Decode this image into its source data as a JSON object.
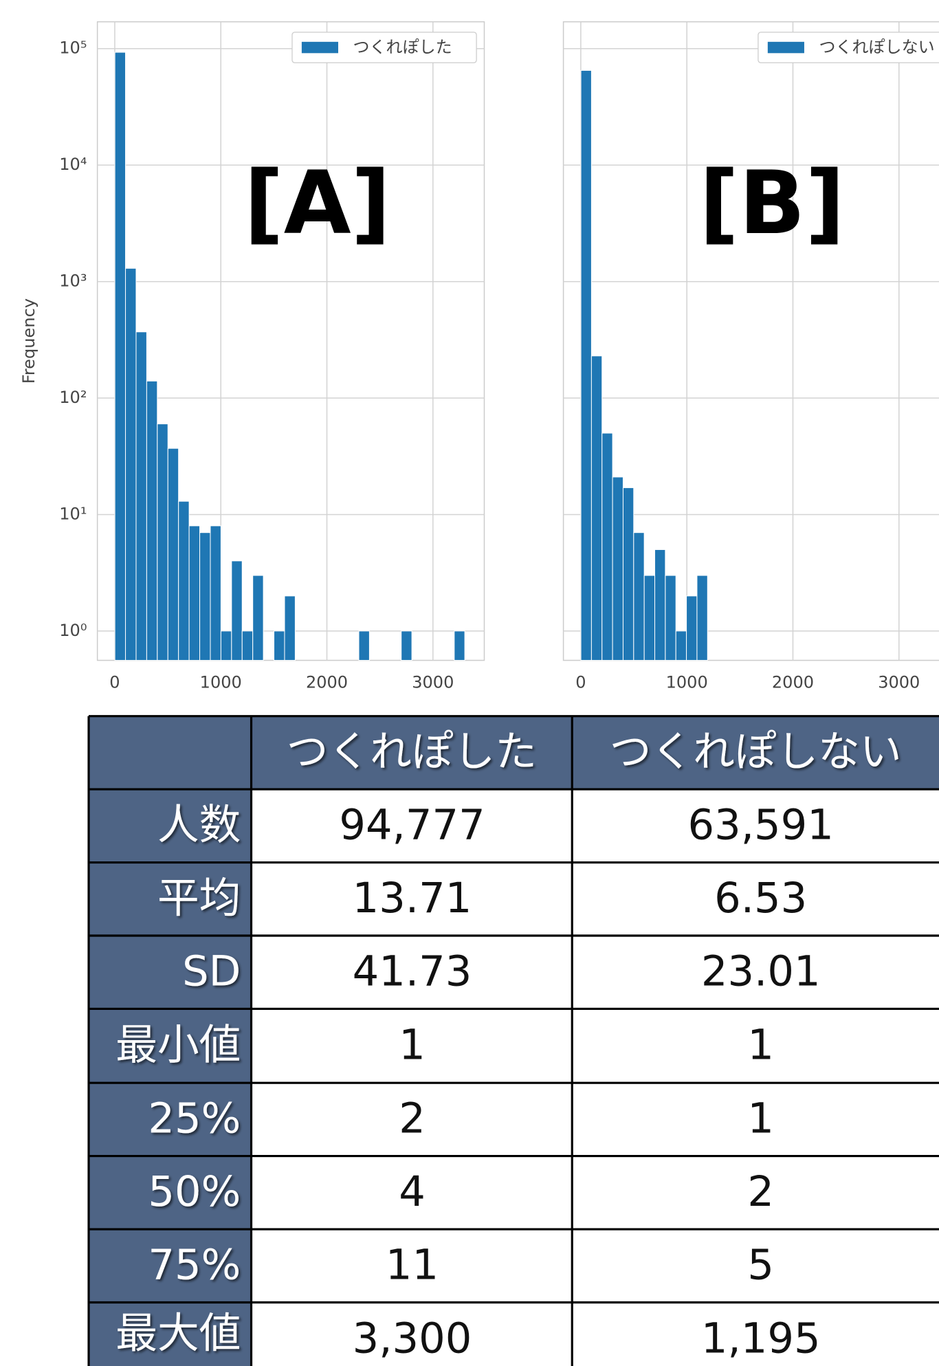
{
  "chart_data": [
    {
      "type": "histogram",
      "annotation": "[A]",
      "ylabel": "Frequency",
      "log_y": true,
      "grid": true,
      "legend": "upper right",
      "series": [
        {
          "name": "つくれぽした",
          "color": "#1f77b4",
          "bins": [
            1,
            101,
            201,
            301,
            401,
            501,
            601,
            701,
            801,
            901,
            1001,
            1101,
            1201,
            1301,
            1401,
            1501,
            1601,
            1701,
            1801,
            1901,
            2001,
            2101,
            2201,
            2301,
            2401,
            2501,
            2601,
            2701,
            2801,
            2901,
            3001,
            3101,
            3201,
            3300
          ],
          "values": [
            93000,
            1300,
            370,
            140,
            60,
            37,
            13,
            8,
            7,
            8,
            1,
            4,
            1,
            3,
            0,
            1,
            2,
            0,
            0,
            0,
            0,
            0,
            0,
            1,
            0,
            0,
            0,
            1,
            0,
            0,
            0,
            0,
            1
          ]
        }
      ],
      "xlim": [
        -164,
        3484
      ],
      "xticks": [
        0,
        1000,
        2000,
        3000
      ],
      "ylim": [
        0.56,
        170000
      ],
      "yticks": [
        {
          "value": 1,
          "label": "10⁰"
        },
        {
          "value": 10,
          "label": "10¹"
        },
        {
          "value": 100,
          "label": "10²"
        },
        {
          "value": 1000,
          "label": "10³"
        },
        {
          "value": 10000,
          "label": "10⁴"
        },
        {
          "value": 100000,
          "label": "10⁵"
        }
      ]
    },
    {
      "type": "histogram",
      "annotation": "[B]",
      "log_y": true,
      "grid": true,
      "legend": "upper right",
      "series": [
        {
          "name": "つくれぽしない",
          "color": "#1f77b4",
          "bins": [
            1,
            100.5,
            200,
            299.5,
            399,
            498.5,
            598,
            697.5,
            797,
            896.5,
            996,
            1095.5,
            1195
          ],
          "values": [
            65000,
            230,
            50,
            21,
            17,
            7,
            3,
            5,
            3,
            1,
            2,
            3
          ]
        }
      ],
      "xlim": [
        -164,
        3484
      ],
      "xticks": [
        0,
        1000,
        2000,
        3000
      ],
      "ylim": [
        0.56,
        170000
      ],
      "yticks": [
        1,
        10,
        100,
        1000,
        10000,
        100000
      ]
    }
  ],
  "table": {
    "header": [
      "つくれぽした",
      "つくれぽしない"
    ],
    "rows": [
      [
        "人数",
        "94,777",
        "63,591"
      ],
      [
        "平均",
        "13.71",
        "6.53"
      ],
      [
        "SD",
        "41.73",
        "23.01"
      ],
      [
        "最小値",
        "1",
        "1"
      ],
      [
        "25%",
        "2",
        "1"
      ],
      [
        "50%",
        "4",
        "2"
      ],
      [
        "75%",
        "11",
        "5"
      ],
      [
        "最大値",
        "3,300",
        "1,195"
      ]
    ]
  }
}
